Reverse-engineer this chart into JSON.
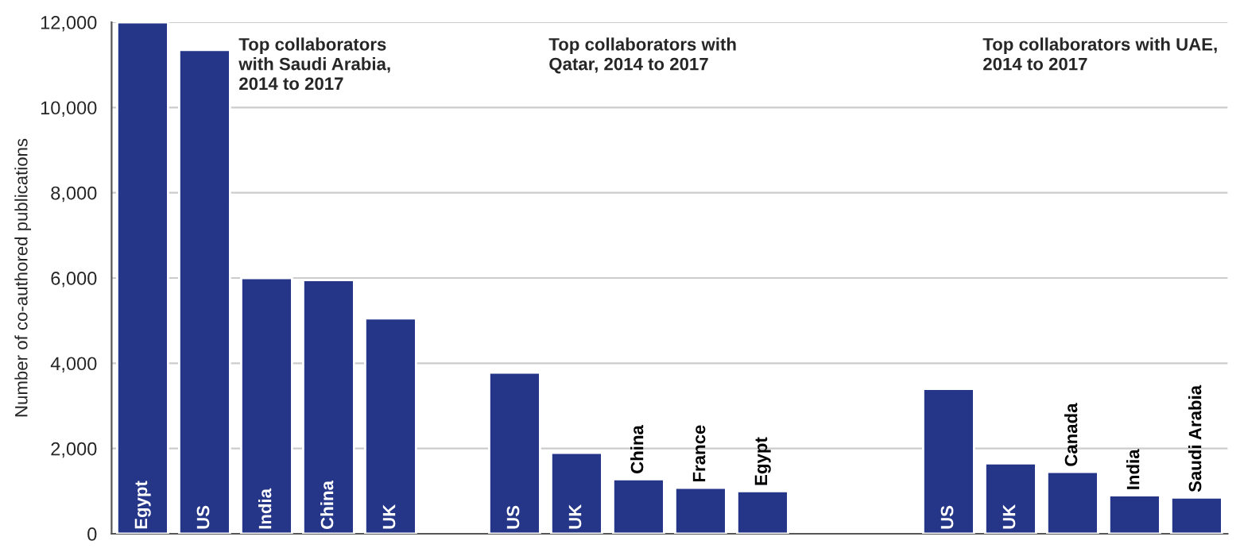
{
  "chart_data": {
    "type": "bar",
    "categories": [
      "Egypt",
      "US",
      "India",
      "China",
      "UK",
      null,
      "US",
      "UK",
      "China",
      "France",
      "Egypt",
      null,
      null,
      "US",
      "UK",
      "Canada",
      "India",
      "Saudi Arabia"
    ],
    "series": [
      {
        "color": "#253689",
        "values": [
          12000,
          11350,
          6000,
          5950,
          5050,
          null,
          3780,
          1900,
          1280,
          1080,
          1000,
          null,
          null,
          3400,
          1650,
          1450,
          900,
          850
        ]
      }
    ],
    "ylabel": "Number of co-authored publications",
    "ylim": [
      0,
      12000
    ],
    "yticks": [
      0,
      {
        "value": 2000,
        "label": "2,000"
      },
      {
        "value": 4000,
        "label": "4,000"
      },
      {
        "value": 6000,
        "label": "6,000"
      },
      {
        "value": 8000,
        "label": "8,000"
      },
      {
        "value": 10000,
        "label": "10,000"
      },
      {
        "value": 12000,
        "label": "12,000"
      }
    ],
    "grid": "y",
    "tick_labels": "y",
    "annotations": [
      "Top collaborators\nwith Saudi Arabia,\n2014 to 2017",
      "Top collaborators with\nQatar, 2014 to 2017",
      "Top collaborators with UAE,\n2014 to 2017"
    ]
  }
}
